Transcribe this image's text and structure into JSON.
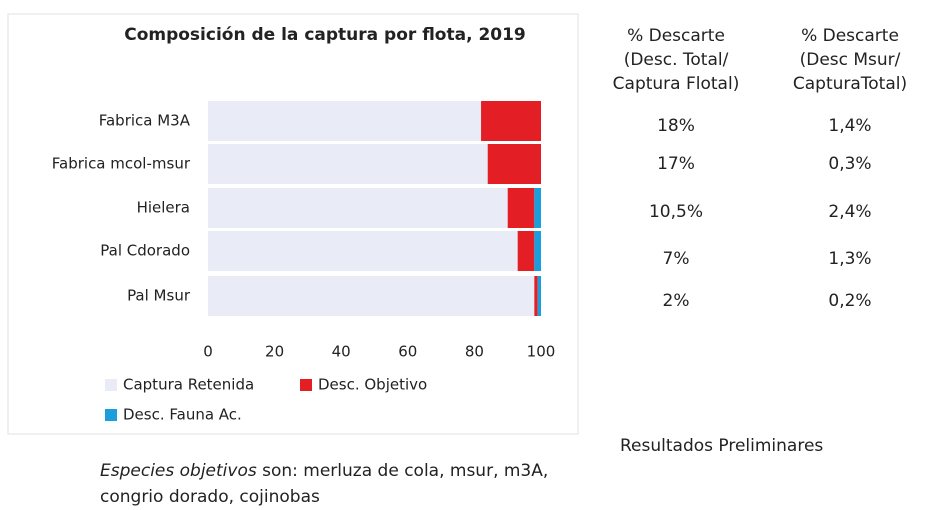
{
  "chart_data": {
    "type": "stacked-barh",
    "title": "Composición de la captura por flota, 2019",
    "categories": [
      "Fabrica M3A",
      "Fabrica mcol-msur",
      "Hielera",
      "Pal Cdorado",
      "Pal Msur"
    ],
    "series": [
      {
        "name": "Captura Retenida",
        "color": "#e9ebf6",
        "values": [
          82,
          84,
          90,
          93,
          98
        ]
      },
      {
        "name": "Desc. Objetivo",
        "color": "#e31e24",
        "values": [
          18,
          16,
          8,
          5,
          1
        ]
      },
      {
        "name": "Desc. Fauna Ac.",
        "color": "#1a9fdc",
        "values": [
          0,
          0,
          2,
          2,
          1
        ]
      }
    ],
    "xlim": [
      0,
      100
    ],
    "xticks": [
      0,
      20,
      40,
      60,
      80,
      100
    ]
  },
  "table": {
    "headers": [
      "% Descarte\n(Desc. Total/\nCaptura Flotal)",
      "% Descarte\n(Desc Msur/\nCapturaTotal)"
    ],
    "rows": [
      [
        "18%",
        "1,4%"
      ],
      [
        "17%",
        "0,3%"
      ],
      [
        "10,5%",
        "2,4%"
      ],
      [
        "7%",
        "1,3%"
      ],
      [
        "2%",
        "0,2%"
      ]
    ]
  },
  "note": {
    "emphasis": "Especies objetivos",
    "text": " son: merluza de cola, msur, m3A, congrio dorado, cojinobas"
  },
  "footer": "Resultados Preliminares"
}
